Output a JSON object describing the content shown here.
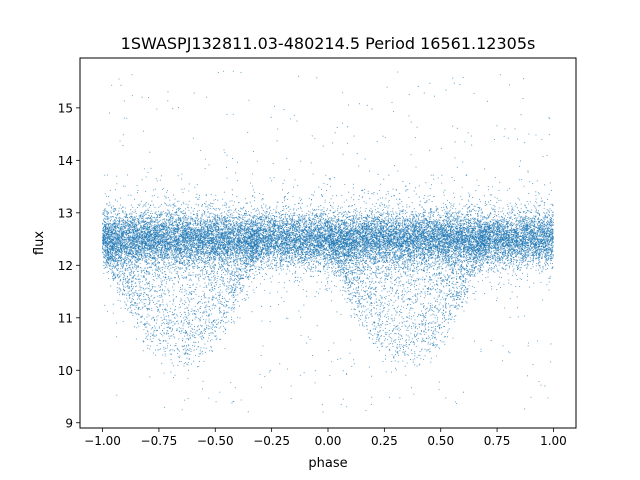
{
  "chart_data": {
    "type": "scatter",
    "title": "1SWASPJ132811.03-480214.5 Period 16561.12305s",
    "xlabel": "phase",
    "ylabel": "flux",
    "xlim": [
      -1.1,
      1.1
    ],
    "ylim": [
      8.9,
      15.95
    ],
    "xticks": [
      -1.0,
      -0.75,
      -0.5,
      -0.25,
      0.0,
      0.25,
      0.5,
      0.75,
      1.0
    ],
    "xtick_labels": [
      "−1.00",
      "−0.75",
      "−0.50",
      "−0.25",
      "0.00",
      "0.25",
      "0.50",
      "0.75",
      "1.00"
    ],
    "yticks": [
      9,
      10,
      11,
      12,
      13,
      14,
      15
    ],
    "ytick_labels": [
      "9",
      "10",
      "11",
      "12",
      "13",
      "14",
      "15"
    ],
    "grid": false,
    "legend": "none",
    "marker_color": "#1f77b4",
    "series": [
      {
        "description": "dense baseline band of phase-folded flux measurements",
        "phase_range": [
          -1.0,
          1.0
        ],
        "flux_center": 12.5,
        "flux_spread": 0.25,
        "approx_points": 20000
      },
      {
        "description": "eclipse dips (repeated every 1.0 in phase)",
        "dip_centers": [
          -0.65,
          0.35
        ],
        "dip_halfwidth": 0.35,
        "dip_min_flux": 10.2,
        "approx_points": 4000
      },
      {
        "description": "sparse outliers",
        "flux_range": [
          9.2,
          15.7
        ],
        "approx_points": 450
      }
    ]
  }
}
